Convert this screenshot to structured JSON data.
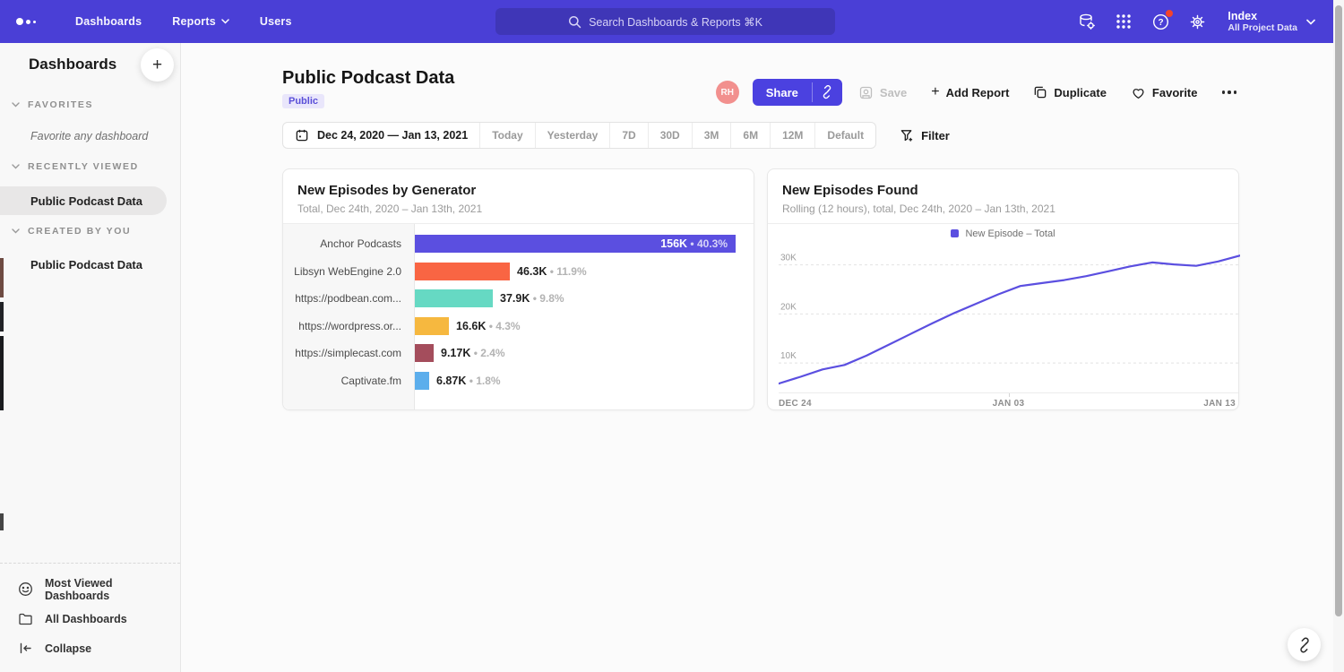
{
  "colors": {
    "nav_bg": "#4a3fd6",
    "accent": "#4b41e0",
    "avatar_bg": "#f2908e",
    "badge_bg": "#e9e6fb",
    "badge_fg": "#5a4fd8",
    "help_badge": "#f4432c"
  },
  "icons": {
    "plus": "+"
  },
  "nav": {
    "items": {
      "dashboards": "Dashboards",
      "reports": "Reports",
      "users": "Users"
    },
    "search_placeholder": "Search Dashboards & Reports ⌘K",
    "workspace_name": "Index",
    "workspace_project": "All Project Data"
  },
  "sidebar": {
    "title": "Dashboards",
    "sections": {
      "favorites": {
        "label": "FAVORITES",
        "empty_text": "Favorite any dashboard"
      },
      "recent": {
        "label": "RECENTLY VIEWED",
        "item": "Public Podcast Data"
      },
      "created": {
        "label": "CREATED BY YOU",
        "item": "Public Podcast Data"
      }
    },
    "footer": {
      "most_viewed": "Most Viewed Dashboards",
      "all_dashboards": "All Dashboards",
      "collapse": "Collapse"
    }
  },
  "header": {
    "title": "Public Podcast Data",
    "badge": "Public",
    "avatar_initials": "RH",
    "share": "Share",
    "save": "Save",
    "add_report": "Add Report",
    "duplicate": "Duplicate",
    "favorite": "Favorite"
  },
  "toolbar": {
    "date_range": "Dec 24, 2020 — Jan 13, 2021",
    "presets": [
      "Today",
      "Yesterday",
      "7D",
      "30D",
      "3M",
      "6M",
      "12M",
      "Default"
    ],
    "filter_label": "Filter"
  },
  "chart_data": [
    {
      "type": "bar",
      "orientation": "horizontal",
      "title": "New Episodes by Generator",
      "subtitle": "Total, Dec 24th, 2020 – Jan 13th, 2021",
      "categories": [
        "Anchor Podcasts",
        "Libsyn WebEngine 2.0",
        "https://podbean.com...",
        "https://wordpress.or...",
        "https://simplecast.com",
        "Captivate.fm"
      ],
      "values": [
        156000,
        46300,
        37900,
        16600,
        9170,
        6870
      ],
      "value_labels": [
        "156K",
        "46.3K",
        "37.9K",
        "16.6K",
        "9.17K",
        "6.87K"
      ],
      "pct_labels": [
        "40.3%",
        "11.9%",
        "9.8%",
        "4.3%",
        "2.4%",
        "1.8%"
      ],
      "separator": "•",
      "bar_colors": [
        "#5b4fe0",
        "#f96543",
        "#66d9c3",
        "#f6b83f",
        "#a44d5c",
        "#5caeec"
      ],
      "xlim": [
        0,
        156000
      ]
    },
    {
      "type": "line",
      "title": "New Episodes Found",
      "subtitle": "Rolling (12 hours), total, Dec 24th, 2020 – Jan 13th, 2021",
      "legend": [
        {
          "label": "New Episode – Total",
          "color": "#5b4fe0"
        }
      ],
      "line_color": "#5b4fe0",
      "x_tick_labels": [
        "DEC 24",
        "JAN 03",
        "JAN 13"
      ],
      "ylim": [
        4000,
        34500
      ],
      "yticks": [
        {
          "value": 10000,
          "label": "10K"
        },
        {
          "value": 20000,
          "label": "20K"
        },
        {
          "value": 30000,
          "label": "30K"
        }
      ],
      "grid": "dashed-horizontal",
      "legend_position": "top-center",
      "values": [
        5800,
        7200,
        8700,
        9600,
        11500,
        13700,
        15900,
        18100,
        20200,
        22100,
        24000,
        25700,
        26300,
        26900,
        27700,
        28700,
        29700,
        30500,
        30100,
        29800,
        30700,
        31900
      ]
    }
  ]
}
